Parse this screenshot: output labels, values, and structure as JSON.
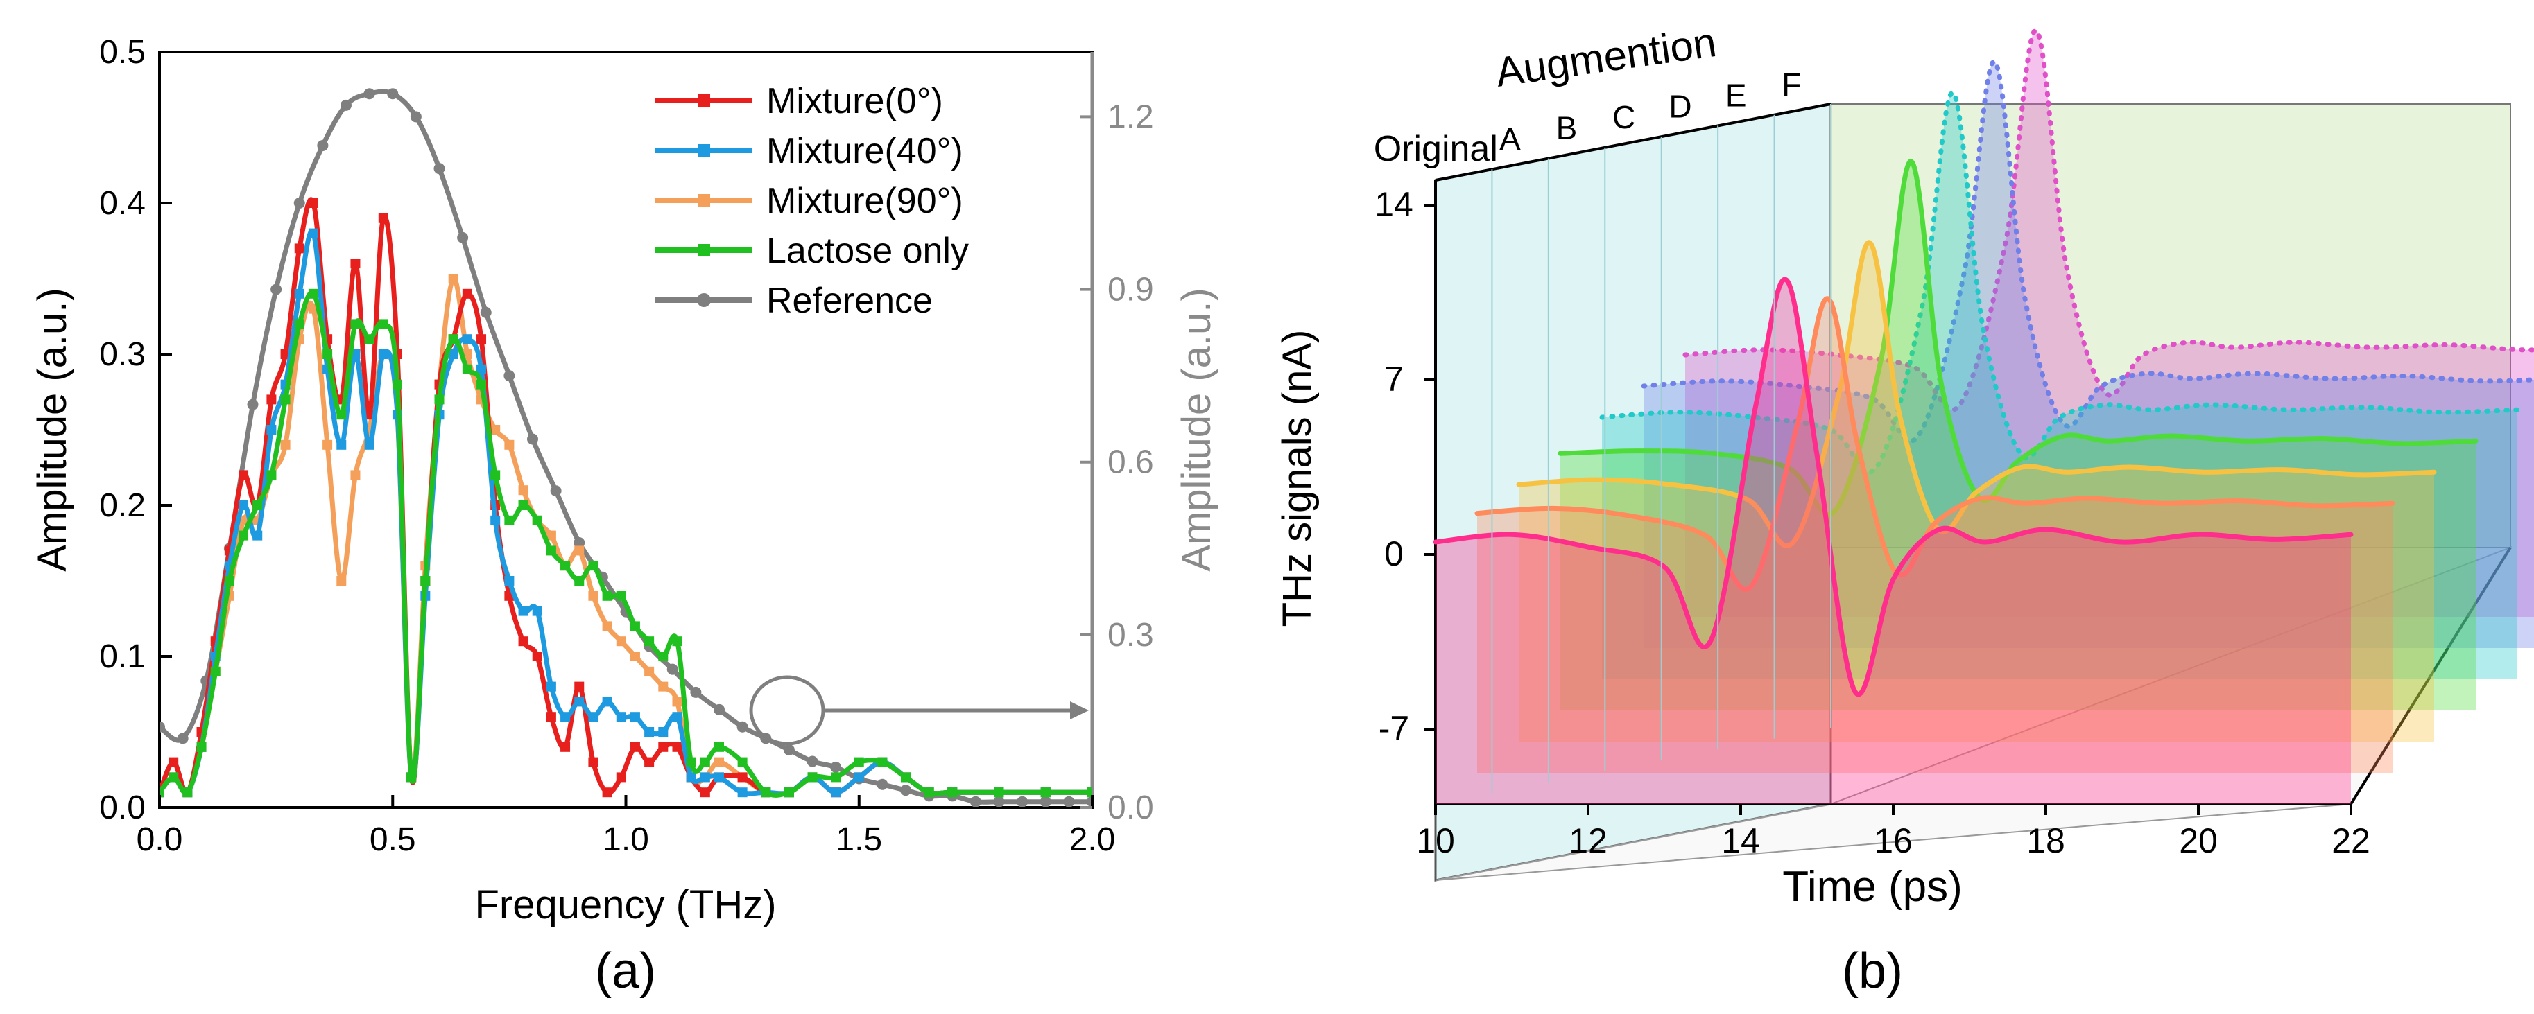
{
  "chart_data": [
    {
      "type": "line",
      "panel_label": "(a)",
      "xlabel": "Frequency (THz)",
      "ylabel": "Amplitude (a.u.)",
      "ylabel_right": "Amplitude (a.u.)",
      "xlim": [
        0,
        2.0
      ],
      "ylim": [
        0,
        0.5
      ],
      "ylim_right": [
        0,
        1.3125
      ],
      "x_ticks": [
        "0.0",
        "0.5",
        "1.0",
        "1.5",
        "2.0"
      ],
      "y_ticks": [
        "0.0",
        "0.1",
        "0.2",
        "0.3",
        "0.4",
        "0.5"
      ],
      "y_right_ticks": [
        "0.0",
        "0.3",
        "0.6",
        "0.9",
        "1.2"
      ],
      "axis_right_color": "#8a8a8a",
      "series": [
        {
          "name": "Mixture(0°)",
          "color": "#e8201d",
          "marker": "square",
          "axis": "left",
          "x": [
            0.0,
            0.03,
            0.06,
            0.09,
            0.12,
            0.15,
            0.18,
            0.21,
            0.24,
            0.27,
            0.3,
            0.33,
            0.36,
            0.39,
            0.42,
            0.45,
            0.48,
            0.51,
            0.54,
            0.57,
            0.6,
            0.63,
            0.66,
            0.69,
            0.72,
            0.75,
            0.78,
            0.81,
            0.84,
            0.87,
            0.9,
            0.93,
            0.96,
            0.99,
            1.02,
            1.05,
            1.08,
            1.11,
            1.14,
            1.17,
            1.2,
            1.25,
            1.3,
            1.35,
            1.4,
            1.45,
            1.5,
            1.55,
            1.6,
            1.65,
            1.7,
            1.8,
            1.9,
            2.0
          ],
          "y": [
            0.01,
            0.03,
            0.01,
            0.05,
            0.11,
            0.17,
            0.22,
            0.2,
            0.27,
            0.3,
            0.37,
            0.4,
            0.31,
            0.27,
            0.36,
            0.26,
            0.39,
            0.3,
            0.02,
            0.15,
            0.28,
            0.31,
            0.34,
            0.31,
            0.2,
            0.14,
            0.11,
            0.1,
            0.06,
            0.04,
            0.08,
            0.03,
            0.01,
            0.02,
            0.04,
            0.03,
            0.04,
            0.04,
            0.02,
            0.01,
            0.02,
            0.02,
            0.01,
            0.01,
            0.02,
            0.01,
            0.02,
            0.03,
            0.02,
            0.01,
            0.01,
            0.01,
            0.01,
            0.01
          ]
        },
        {
          "name": "Mixture(40°)",
          "color": "#1e9be0",
          "marker": "square",
          "axis": "left",
          "x": [
            0.0,
            0.03,
            0.06,
            0.09,
            0.12,
            0.15,
            0.18,
            0.21,
            0.24,
            0.27,
            0.3,
            0.33,
            0.36,
            0.39,
            0.42,
            0.45,
            0.48,
            0.51,
            0.54,
            0.57,
            0.6,
            0.63,
            0.66,
            0.69,
            0.72,
            0.75,
            0.78,
            0.81,
            0.84,
            0.87,
            0.9,
            0.93,
            0.96,
            0.99,
            1.02,
            1.05,
            1.08,
            1.11,
            1.14,
            1.17,
            1.2,
            1.25,
            1.3,
            1.35,
            1.4,
            1.45,
            1.5,
            1.55,
            1.6,
            1.65,
            1.7,
            1.8,
            1.9,
            2.0
          ],
          "y": [
            0.01,
            0.02,
            0.01,
            0.04,
            0.1,
            0.16,
            0.2,
            0.18,
            0.25,
            0.28,
            0.34,
            0.38,
            0.29,
            0.24,
            0.3,
            0.24,
            0.3,
            0.26,
            0.02,
            0.14,
            0.26,
            0.3,
            0.31,
            0.29,
            0.19,
            0.15,
            0.13,
            0.13,
            0.08,
            0.06,
            0.07,
            0.06,
            0.07,
            0.06,
            0.06,
            0.05,
            0.05,
            0.06,
            0.02,
            0.02,
            0.02,
            0.01,
            0.01,
            0.01,
            0.02,
            0.01,
            0.02,
            0.03,
            0.02,
            0.01,
            0.01,
            0.01,
            0.01,
            0.01
          ]
        },
        {
          "name": "Mixture(90°)",
          "color": "#f5a05a",
          "marker": "square",
          "axis": "left",
          "x": [
            0.0,
            0.03,
            0.06,
            0.09,
            0.12,
            0.15,
            0.18,
            0.21,
            0.24,
            0.27,
            0.3,
            0.33,
            0.36,
            0.39,
            0.42,
            0.45,
            0.48,
            0.51,
            0.54,
            0.57,
            0.6,
            0.63,
            0.66,
            0.69,
            0.72,
            0.75,
            0.78,
            0.81,
            0.84,
            0.87,
            0.9,
            0.93,
            0.96,
            0.99,
            1.02,
            1.05,
            1.08,
            1.11,
            1.14,
            1.17,
            1.2,
            1.25,
            1.3,
            1.35,
            1.4,
            1.45,
            1.5,
            1.55,
            1.6,
            1.65,
            1.7,
            1.8,
            1.9,
            2.0
          ],
          "y": [
            0.01,
            0.02,
            0.01,
            0.04,
            0.09,
            0.14,
            0.19,
            0.19,
            0.22,
            0.24,
            0.31,
            0.33,
            0.24,
            0.15,
            0.22,
            0.25,
            0.3,
            0.26,
            0.02,
            0.16,
            0.28,
            0.35,
            0.3,
            0.27,
            0.25,
            0.24,
            0.21,
            0.19,
            0.18,
            0.16,
            0.17,
            0.14,
            0.12,
            0.11,
            0.1,
            0.09,
            0.08,
            0.07,
            0.02,
            0.02,
            0.03,
            0.02,
            0.01,
            0.01,
            0.02,
            0.01,
            0.02,
            0.03,
            0.02,
            0.01,
            0.01,
            0.01,
            0.01,
            0.01
          ]
        },
        {
          "name": "Lactose only",
          "color": "#20c020",
          "marker": "square",
          "axis": "left",
          "x": [
            0.0,
            0.03,
            0.06,
            0.09,
            0.12,
            0.15,
            0.18,
            0.21,
            0.24,
            0.27,
            0.3,
            0.33,
            0.36,
            0.39,
            0.42,
            0.45,
            0.48,
            0.51,
            0.54,
            0.57,
            0.6,
            0.63,
            0.66,
            0.69,
            0.72,
            0.75,
            0.78,
            0.81,
            0.84,
            0.87,
            0.9,
            0.93,
            0.96,
            0.99,
            1.02,
            1.05,
            1.08,
            1.11,
            1.14,
            1.17,
            1.2,
            1.25,
            1.3,
            1.35,
            1.4,
            1.45,
            1.5,
            1.55,
            1.6,
            1.65,
            1.7,
            1.8,
            1.9,
            2.0
          ],
          "y": [
            0.01,
            0.02,
            0.01,
            0.04,
            0.09,
            0.15,
            0.18,
            0.2,
            0.22,
            0.27,
            0.32,
            0.34,
            0.3,
            0.26,
            0.32,
            0.31,
            0.32,
            0.28,
            0.02,
            0.15,
            0.27,
            0.31,
            0.29,
            0.28,
            0.22,
            0.19,
            0.2,
            0.19,
            0.17,
            0.16,
            0.15,
            0.16,
            0.14,
            0.14,
            0.12,
            0.11,
            0.1,
            0.11,
            0.03,
            0.03,
            0.04,
            0.03,
            0.01,
            0.01,
            0.02,
            0.02,
            0.03,
            0.03,
            0.02,
            0.01,
            0.01,
            0.01,
            0.01,
            0.01
          ]
        },
        {
          "name": "Reference",
          "color": "#7f7f7f",
          "marker": "circle",
          "axis": "right",
          "x": [
            0.0,
            0.05,
            0.1,
            0.15,
            0.2,
            0.25,
            0.3,
            0.35,
            0.4,
            0.45,
            0.5,
            0.55,
            0.6,
            0.65,
            0.7,
            0.75,
            0.8,
            0.85,
            0.9,
            0.95,
            1.0,
            1.05,
            1.1,
            1.15,
            1.2,
            1.25,
            1.3,
            1.35,
            1.4,
            1.45,
            1.5,
            1.55,
            1.6,
            1.65,
            1.7,
            1.75,
            1.8,
            1.85,
            1.9,
            1.95,
            2.0
          ],
          "y": [
            0.14,
            0.12,
            0.22,
            0.45,
            0.7,
            0.9,
            1.05,
            1.15,
            1.22,
            1.24,
            1.24,
            1.2,
            1.11,
            0.99,
            0.86,
            0.75,
            0.64,
            0.55,
            0.46,
            0.4,
            0.34,
            0.28,
            0.24,
            0.2,
            0.17,
            0.14,
            0.12,
            0.1,
            0.08,
            0.07,
            0.05,
            0.04,
            0.03,
            0.02,
            0.02,
            0.01,
            0.01,
            0.01,
            0.01,
            0.01,
            0.01
          ]
        }
      ]
    },
    {
      "type": "line",
      "subtype": "3d-waterfall",
      "panel_label": "(b)",
      "xlabel": "Time (ps)",
      "ylabel": "THz signals (nA)",
      "zlabel": "Augmention",
      "xlim": [
        10,
        22
      ],
      "ylim": [
        -10,
        15
      ],
      "x_ticks": [
        "10",
        "12",
        "14",
        "16",
        "18",
        "20",
        "22"
      ],
      "y_ticks": [
        "-7",
        "0",
        "7",
        "14"
      ],
      "depth_labels": [
        "Original",
        "A",
        "B",
        "C",
        "D",
        "E",
        "F"
      ],
      "series": [
        {
          "name": "Original",
          "color": "#ff2d8c",
          "style": "solid",
          "x": [
            10,
            11,
            12,
            13,
            13.6,
            14.2,
            14.6,
            15.0,
            15.5,
            16.0,
            16.6,
            17.2,
            18,
            19,
            20,
            21,
            22
          ],
          "y": [
            0.5,
            0.8,
            0.3,
            -0.5,
            -3.5,
            6,
            11,
            4,
            -5.5,
            -1,
            1,
            0.5,
            1,
            0.5,
            0.8,
            0.6,
            0.8
          ]
        },
        {
          "name": "A",
          "color": "#ff8a5c",
          "style": "solid",
          "x": [
            10,
            11,
            12,
            13,
            13.6,
            14.2,
            14.6,
            15.0,
            15.5,
            16.0,
            16.6,
            17.2,
            18,
            19,
            20,
            21,
            22
          ],
          "y": [
            0.4,
            0.6,
            0.3,
            -0.5,
            -2.5,
            4,
            9,
            3,
            -2,
            0,
            1,
            0.8,
            1,
            0.8,
            0.9,
            0.7,
            0.8
          ]
        },
        {
          "name": "B",
          "color": "#f7c242",
          "style": "solid",
          "x": [
            10,
            11,
            12,
            13,
            13.6,
            14.2,
            14.6,
            15.0,
            15.5,
            16.0,
            16.6,
            17.2,
            18,
            19,
            20,
            21,
            22
          ],
          "y": [
            0.3,
            0.5,
            0.3,
            -0.3,
            -2,
            4,
            10,
            3,
            -1.5,
            0,
            1,
            0.8,
            1,
            0.8,
            0.9,
            0.7,
            0.8
          ]
        },
        {
          "name": "C",
          "color": "#4fdc3a",
          "style": "solid",
          "x": [
            10,
            11,
            12,
            13,
            13.6,
            14.2,
            14.6,
            15.0,
            15.5,
            16.0,
            16.6,
            17.2,
            18,
            19,
            20,
            21,
            22
          ],
          "y": [
            0.3,
            0.4,
            0.3,
            -0.3,
            -2,
            4,
            12,
            3,
            -1.5,
            0,
            1,
            0.8,
            1,
            0.8,
            0.9,
            0.7,
            0.8
          ]
        },
        {
          "name": "D",
          "color": "#21c9c9",
          "style": "dotted",
          "x": [
            10,
            11,
            12,
            13,
            13.6,
            14.2,
            14.6,
            15.0,
            15.5,
            16.0,
            16.6,
            17.2,
            18,
            19,
            20,
            21,
            22
          ],
          "y": [
            0.5,
            0.7,
            0.5,
            0,
            -1.5,
            5,
            13.5,
            4,
            -1,
            0.5,
            1,
            0.8,
            1,
            0.8,
            0.9,
            0.7,
            0.8
          ]
        },
        {
          "name": "E",
          "color": "#7080e8",
          "style": "dotted",
          "x": [
            10,
            11,
            12,
            13,
            13.6,
            14.2,
            14.6,
            15.0,
            15.5,
            16.0,
            16.6,
            17.2,
            18,
            19,
            20,
            21,
            22
          ],
          "y": [
            0.5,
            0.7,
            0.5,
            0,
            -1.5,
            5,
            13.5,
            4,
            -1,
            0.5,
            1,
            0.8,
            1,
            0.8,
            0.9,
            0.7,
            0.8
          ]
        },
        {
          "name": "F",
          "color": "#e050c8",
          "style": "dotted",
          "x": [
            10,
            11,
            12,
            13,
            13.6,
            14.2,
            14.6,
            15.0,
            15.5,
            16.0,
            16.6,
            17.2,
            18,
            19,
            20,
            21,
            22
          ],
          "y": [
            0.5,
            0.7,
            0.5,
            0,
            -1.5,
            5,
            13.5,
            4,
            -1,
            0.5,
            1,
            0.8,
            1,
            0.8,
            0.9,
            0.7,
            0.8
          ]
        }
      ]
    }
  ]
}
